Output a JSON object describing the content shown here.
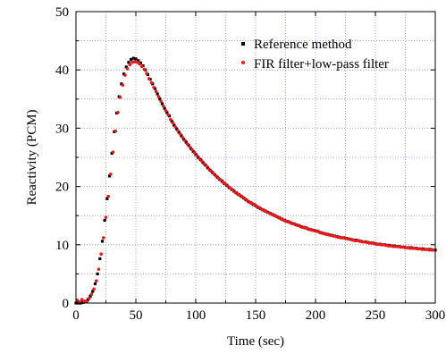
{
  "chart_data": {
    "type": "scatter",
    "title": "",
    "xlabel": "Time (sec)",
    "ylabel": "Reactivity (PCM)",
    "xlim": [
      0,
      300
    ],
    "ylim": [
      0,
      50
    ],
    "xticks": [
      0,
      50,
      100,
      150,
      200,
      250,
      300
    ],
    "yticks": [
      0,
      10,
      20,
      30,
      40,
      50
    ],
    "grid": true,
    "legend_position": "top-right",
    "series": [
      {
        "name": "Reference method",
        "color": "#000000",
        "marker": "square",
        "x": [
          0,
          2,
          4,
          6,
          8,
          10,
          12,
          14,
          16,
          18,
          20,
          22,
          24,
          26,
          28,
          30,
          32,
          34,
          36,
          38,
          40,
          42,
          44,
          46,
          48,
          50,
          52,
          54,
          56,
          58,
          60,
          62,
          64,
          66,
          68,
          70,
          72,
          74,
          76,
          78,
          80,
          82,
          84,
          86,
          88,
          90,
          92,
          94,
          96,
          98,
          100,
          102,
          104,
          106,
          108,
          110,
          112,
          114,
          116,
          118,
          120,
          122,
          124,
          126,
          128,
          130,
          132,
          134,
          136,
          138,
          140,
          142,
          144,
          146,
          148,
          150,
          152,
          154,
          156,
          158,
          160,
          162,
          164,
          166,
          168,
          170,
          172,
          174,
          176,
          178,
          180,
          182,
          184,
          186,
          188,
          190,
          192,
          194,
          196,
          198,
          200,
          202,
          204,
          206,
          208,
          210,
          212,
          214,
          216,
          218,
          220,
          222,
          224,
          226,
          228,
          230,
          232,
          234,
          236,
          238,
          240,
          242,
          244,
          246,
          248,
          250,
          252,
          254,
          256,
          258,
          260,
          262,
          264,
          266,
          268,
          270,
          272,
          274,
          276,
          278,
          280,
          282,
          284,
          286,
          288,
          290,
          292,
          294,
          296,
          298,
          300
        ],
        "y": [
          0.0,
          0.0,
          0.0,
          0.1,
          0.3,
          0.6,
          1.2,
          2.0,
          3.3,
          5.0,
          7.6,
          10.6,
          14.2,
          17.9,
          21.8,
          25.7,
          29.4,
          32.6,
          35.4,
          37.6,
          39.3,
          40.5,
          41.3,
          41.8,
          42.0,
          41.9,
          41.6,
          41.2,
          40.7,
          40.0,
          39.2,
          38.4,
          37.6,
          36.8,
          35.9,
          35.0,
          34.2,
          33.4,
          32.7,
          32.1,
          31.2,
          30.5,
          29.9,
          29.3,
          28.7,
          28.1,
          27.6,
          27.1,
          26.5,
          26.0,
          25.5,
          25.0,
          24.6,
          24.1,
          23.7,
          23.2,
          22.8,
          22.4,
          22.0,
          21.6,
          21.2,
          20.9,
          20.5,
          20.2,
          19.8,
          19.5,
          19.2,
          18.9,
          18.6,
          18.3,
          18.0,
          17.7,
          17.4,
          17.2,
          16.9,
          16.7,
          16.4,
          16.2,
          16.0,
          15.8,
          15.6,
          15.4,
          15.2,
          15.0,
          14.8,
          14.6,
          14.4,
          14.2,
          14.0,
          13.9,
          13.7,
          13.6,
          13.4,
          13.3,
          13.1,
          13.0,
          12.9,
          12.7,
          12.6,
          12.5,
          12.4,
          12.3,
          12.1,
          12.0,
          11.9,
          11.8,
          11.7,
          11.6,
          11.5,
          11.4,
          11.3,
          11.2,
          11.2,
          11.1,
          11.0,
          10.9,
          10.8,
          10.8,
          10.7,
          10.6,
          10.5,
          10.5,
          10.4,
          10.3,
          10.3,
          10.2,
          10.1,
          10.1,
          10.0,
          10.0,
          9.9,
          9.9,
          9.8,
          9.8,
          9.7,
          9.7,
          9.6,
          9.6,
          9.5,
          9.5,
          9.5,
          9.4,
          9.4,
          9.3,
          9.3,
          9.3,
          9.2,
          9.2,
          9.2,
          9.1,
          9.1
        ]
      },
      {
        "name": "FIR filter+low-pass filter",
        "color": "#e8191d",
        "marker": "dot",
        "x": [
          1,
          3,
          5,
          7,
          9,
          11,
          13,
          15,
          17,
          19,
          21,
          23,
          25,
          27,
          29,
          31,
          33,
          35,
          37,
          39,
          41,
          43,
          45,
          47,
          49,
          51,
          53,
          55,
          57,
          59,
          61,
          63,
          65,
          67,
          69,
          71,
          73,
          75,
          77,
          79,
          81,
          83,
          85,
          87,
          89,
          91,
          93,
          95,
          97,
          99,
          101,
          103,
          105,
          107,
          109,
          111,
          113,
          115,
          117,
          119,
          121,
          123,
          125,
          127,
          129,
          131,
          133,
          135,
          137,
          139,
          141,
          143,
          145,
          147,
          149,
          151,
          153,
          155,
          157,
          159,
          161,
          163,
          165,
          167,
          169,
          171,
          173,
          175,
          177,
          179,
          181,
          183,
          185,
          187,
          189,
          191,
          193,
          195,
          197,
          199,
          201,
          203,
          205,
          207,
          209,
          211,
          213,
          215,
          217,
          219,
          221,
          223,
          225,
          227,
          229,
          231,
          233,
          235,
          237,
          239,
          241,
          243,
          245,
          247,
          249,
          251,
          253,
          255,
          257,
          259,
          261,
          263,
          265,
          267,
          269,
          271,
          273,
          275,
          277,
          279,
          281,
          283,
          285,
          287,
          289,
          291,
          293,
          295,
          297,
          299
        ],
        "y": [
          0.5,
          0.2,
          0.6,
          0.3,
          0.2,
          0.8,
          1.5,
          2.4,
          3.8,
          5.8,
          8.4,
          11.2,
          14.7,
          18.3,
          22.1,
          25.9,
          29.5,
          32.7,
          35.3,
          37.4,
          39.1,
          40.2,
          40.9,
          41.3,
          41.4,
          41.3,
          41.0,
          40.6,
          40.1,
          39.4,
          38.5,
          37.8,
          37.0,
          36.3,
          35.4,
          34.6,
          33.8,
          33.0,
          32.3,
          31.5,
          30.9,
          30.2,
          29.6,
          29.0,
          28.4,
          27.9,
          27.3,
          26.8,
          26.3,
          25.8,
          25.3,
          24.8,
          24.4,
          23.9,
          23.5,
          23.0,
          22.6,
          22.2,
          21.8,
          21.4,
          21.1,
          20.7,
          20.4,
          20.0,
          19.7,
          19.4,
          19.0,
          18.7,
          18.5,
          18.2,
          17.9,
          17.6,
          17.3,
          17.1,
          16.9,
          16.6,
          16.4,
          16.1,
          15.9,
          15.7,
          15.5,
          15.3,
          15.1,
          14.9,
          14.7,
          14.5,
          14.3,
          14.1,
          14.0,
          13.8,
          13.6,
          13.5,
          13.3,
          13.2,
          13.0,
          12.9,
          12.8,
          12.6,
          12.5,
          12.4,
          12.3,
          12.2,
          12.0,
          11.9,
          11.8,
          11.7,
          11.6,
          11.5,
          11.4,
          11.3,
          11.2,
          11.2,
          11.1,
          11.0,
          10.9,
          10.8,
          10.7,
          10.7,
          10.6,
          10.5,
          10.5,
          10.4,
          10.3,
          10.3,
          10.2,
          10.1,
          10.1,
          10.0,
          10.0,
          9.9,
          9.8,
          9.8,
          9.7,
          9.7,
          9.7,
          9.6,
          9.6,
          9.5,
          9.5,
          9.4,
          9.4,
          9.4,
          9.3,
          9.3,
          9.2,
          9.2,
          9.2,
          9.1,
          9.1,
          9.1
        ]
      }
    ]
  }
}
